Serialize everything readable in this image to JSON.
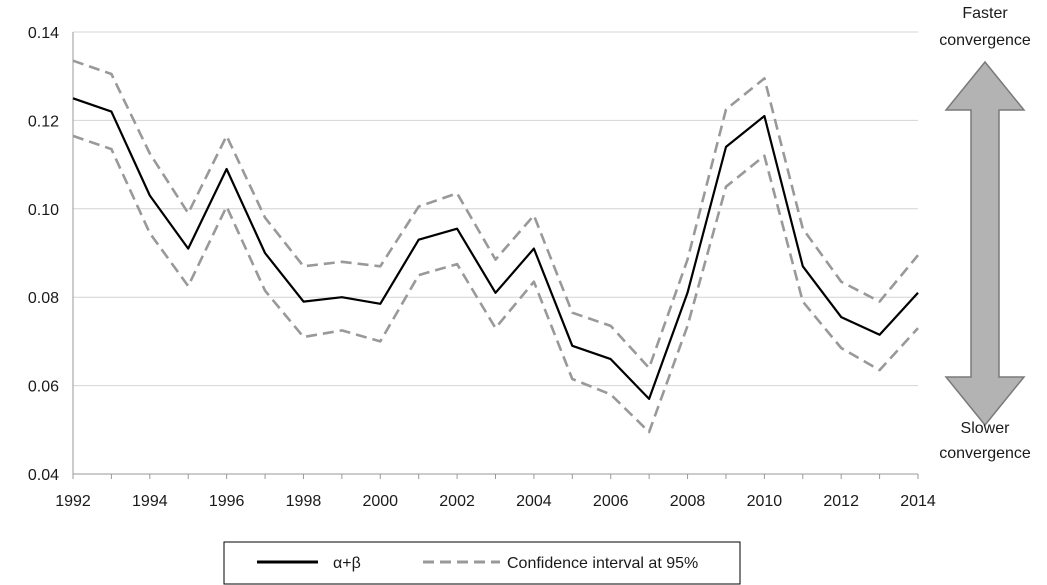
{
  "chart_data": {
    "type": "line",
    "x": [
      1992,
      1993,
      1994,
      1995,
      1996,
      1997,
      1998,
      1999,
      2000,
      2001,
      2002,
      2003,
      2004,
      2005,
      2006,
      2007,
      2008,
      2009,
      2010,
      2011,
      2012,
      2013,
      2014
    ],
    "series": [
      {
        "name": "α+β",
        "style": "solid",
        "color": "#000000",
        "values": [
          0.125,
          0.122,
          0.103,
          0.091,
          0.109,
          0.09,
          0.079,
          0.08,
          0.0785,
          0.093,
          0.0955,
          0.081,
          0.091,
          0.069,
          0.066,
          0.057,
          0.081,
          0.114,
          0.121,
          0.087,
          0.0755,
          0.0715,
          0.081
        ]
      },
      {
        "name": "Confidence interval at 95%",
        "style": "dashed",
        "color": "#999999",
        "values": [
          0.1335,
          0.1305,
          0.1125,
          0.099,
          0.1165,
          0.098,
          0.087,
          0.088,
          0.087,
          0.1005,
          0.1035,
          0.0885,
          0.0985,
          0.0765,
          0.0735,
          0.064,
          0.0885,
          0.1225,
          0.1295,
          0.0955,
          0.0835,
          0.079,
          0.0895
        ]
      },
      {
        "style": "dashed",
        "color": "#999999",
        "legend": false,
        "values": [
          0.1165,
          0.1135,
          0.0945,
          0.0825,
          0.1005,
          0.0815,
          0.071,
          0.0725,
          0.07,
          0.085,
          0.0875,
          0.073,
          0.0835,
          0.0615,
          0.058,
          0.0495,
          0.0735,
          0.105,
          0.112,
          0.079,
          0.0685,
          0.0635,
          0.073
        ]
      }
    ],
    "xticks": [
      1992,
      1994,
      1996,
      1998,
      2000,
      2002,
      2004,
      2006,
      2008,
      2010,
      2012,
      2014
    ],
    "yticks": [
      "0.04",
      "0.06",
      "0.08",
      "0.10",
      "0.12",
      "0.14"
    ],
    "xlim": [
      1992,
      2014
    ],
    "ylim": [
      0.04,
      0.14
    ],
    "grid": "horizontal",
    "legend_position": "bottom",
    "annotations": {
      "top": [
        "Faster",
        "convergence"
      ],
      "bottom": [
        "Slower",
        "convergence"
      ],
      "arrow": "double-headed vertical arrow",
      "arrow_color": "#b3b3b3"
    }
  }
}
